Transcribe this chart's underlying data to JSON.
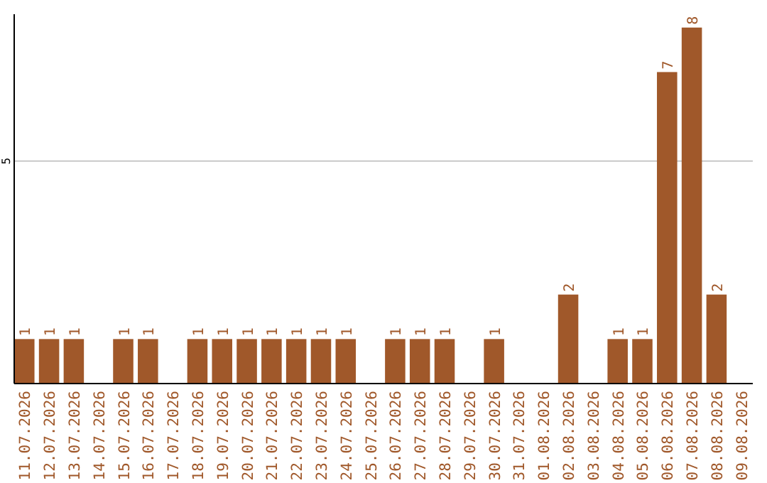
{
  "chart_data": {
    "type": "bar",
    "categories": [
      "11.07.2026",
      "12.07.2026",
      "13.07.2026",
      "14.07.2026",
      "15.07.2026",
      "16.07.2026",
      "17.07.2026",
      "18.07.2026",
      "19.07.2026",
      "20.07.2026",
      "21.07.2026",
      "22.07.2026",
      "23.07.2026",
      "24.07.2026",
      "25.07.2026",
      "26.07.2026",
      "27.07.2026",
      "28.07.2026",
      "29.07.2026",
      "30.07.2026",
      "31.07.2026",
      "01.08.2026",
      "02.08.2026",
      "03.08.2026",
      "04.08.2026",
      "05.08.2026",
      "06.08.2026",
      "07.08.2026",
      "08.08.2026",
      "09.08.2026"
    ],
    "values": [
      1,
      1,
      1,
      null,
      1,
      1,
      null,
      1,
      1,
      1,
      1,
      1,
      1,
      1,
      null,
      1,
      1,
      1,
      null,
      1,
      null,
      null,
      2,
      null,
      1,
      1,
      7,
      8,
      2,
      null
    ],
    "color": "#a0582a",
    "ylim": [
      0,
      8.3
    ],
    "yticks": [
      5
    ],
    "grid": "y",
    "data_labels": true
  }
}
